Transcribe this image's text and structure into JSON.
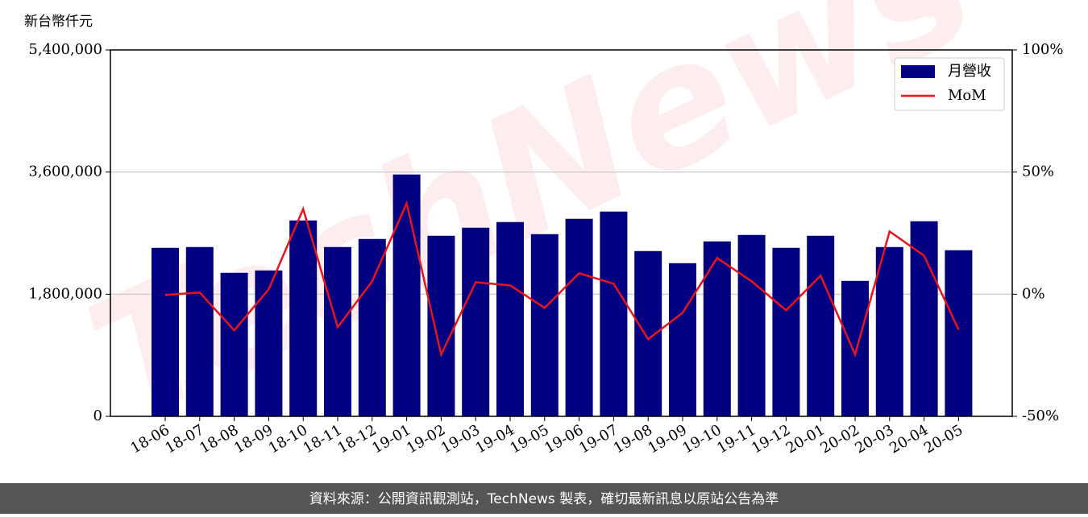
{
  "chart_data": {
    "type": "bar-line",
    "y_label": "新台幣仟元",
    "watermark": "TechNews",
    "footer": "資料來源：公開資訊觀測站，TechNews 製表，確切最新訊息以原站公告為準",
    "categories": [
      "18-06",
      "18-07",
      "18-08",
      "18-09",
      "18-10",
      "18-11",
      "18-12",
      "19-01",
      "19-02",
      "19-03",
      "19-04",
      "19-05",
      "19-06",
      "19-07",
      "19-08",
      "19-09",
      "19-10",
      "19-11",
      "19-12",
      "20-01",
      "20-02",
      "20-03",
      "20-04",
      "20-05"
    ],
    "series": [
      {
        "name": "月營收",
        "color": "#000080",
        "type": "bar",
        "values": [
          2483000,
          2495000,
          2115000,
          2150000,
          2887000,
          2495000,
          2614000,
          3564000,
          2661000,
          2780000,
          2863000,
          2685000,
          2911000,
          3018000,
          2436000,
          2257000,
          2578000,
          2673000,
          2483000,
          2661000,
          1996000,
          2495000,
          2875000,
          2448000
        ]
      },
      {
        "name": "MoM",
        "color": "#e8141c",
        "type": "line",
        "axis": "y2",
        "values": [
          -0.3,
          0.7,
          -14.8,
          2.0,
          34.9,
          -13.5,
          5.3,
          37.2,
          -24.7,
          4.9,
          3.6,
          -5.6,
          8.6,
          4.3,
          -18.4,
          -7.6,
          14.8,
          5.3,
          -6.6,
          7.6,
          -24.7,
          25.7,
          15.8,
          -14.5
        ]
      }
    ],
    "ylim": [
      0,
      5400000
    ],
    "yticks": [
      0,
      {
        "value": 1800000,
        "label": "1,800,000"
      },
      {
        "value": 3600000,
        "label": "3,600,000"
      },
      {
        "value": 5400000,
        "label": "5,400,000"
      }
    ],
    "y2lim": [
      -50,
      100
    ],
    "y2ticks": [
      {
        "value": -50,
        "label": "-50%"
      },
      {
        "value": 0,
        "label": "0%"
      },
      {
        "value": 50,
        "label": "50%"
      },
      {
        "value": 100,
        "label": "100%"
      }
    ],
    "grid": true,
    "legend": "upper right"
  }
}
